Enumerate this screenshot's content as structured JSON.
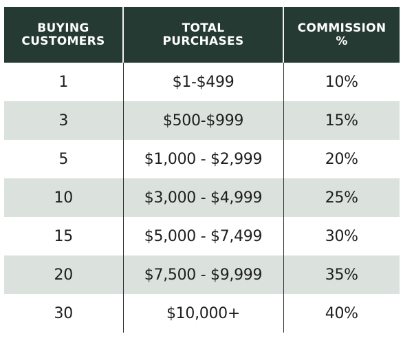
{
  "colors": {
    "header_bg": "#253a33",
    "header_text": "#ffffff",
    "stripe_bg": "#dbe1dd",
    "row_bg": "#ffffff",
    "body_text": "#1d1f1e"
  },
  "table": {
    "headers": [
      "BUYING\nCUSTOMERS",
      "TOTAL\nPURCHASES",
      "COMMISSION\n%"
    ],
    "rows": [
      [
        "1",
        "$1-$499",
        "10%"
      ],
      [
        "3",
        "$500-$999",
        "15%"
      ],
      [
        "5",
        "$1,000 - $2,999",
        "20%"
      ],
      [
        "10",
        "$3,000 - $4,999",
        "25%"
      ],
      [
        "15",
        "$5,000 - $7,499",
        "30%"
      ],
      [
        "20",
        "$7,500 - $9,999",
        "35%"
      ],
      [
        "30",
        "$10,000+",
        "40%"
      ]
    ]
  }
}
